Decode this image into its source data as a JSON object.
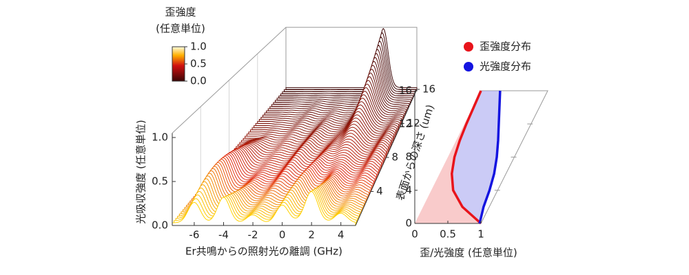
{
  "colorbar": {
    "title": [
      "歪強度",
      "(任意単位)"
    ],
    "ticks": [
      {
        "value": 1,
        "label": "1.0"
      },
      {
        "value": 0.5,
        "label": "0.5"
      },
      {
        "value": 0,
        "label": "0.0"
      }
    ]
  },
  "chart_data": [
    {
      "type": "waterfall",
      "xlabel": "Er共鳴からの照射光の離調 (GHz)",
      "ylabel": "光吸収強度 (任意単位)",
      "zlabel": "表面からの深さ (um)",
      "xlim": [
        -7.5,
        5
      ],
      "xticks": [
        -6,
        -4,
        -2,
        0,
        2,
        4
      ],
      "ylim": [
        0,
        1.05
      ],
      "yticks": [
        {
          "value": 0,
          "label": "0.0"
        },
        {
          "value": 0.5,
          "label": "0.5"
        },
        {
          "value": 1,
          "label": "1.0"
        }
      ],
      "zlim": [
        0,
        16
      ],
      "zticks": [
        4,
        8,
        12,
        16
      ]
    },
    {
      "type": "line",
      "xlabel": "歪/光強度 (任意単位)",
      "xlim": [
        0,
        1
      ],
      "xticks": [
        0,
        0.5,
        1
      ],
      "ylim": [
        0,
        16
      ],
      "yticks": [
        0,
        4,
        8,
        12,
        16
      ],
      "y": [
        0,
        2,
        4,
        6,
        8,
        10,
        12,
        14,
        16
      ],
      "series": [
        {
          "name": "歪強度分布",
          "color": "#e8141b",
          "values": [
            1.0,
            0.72,
            0.58,
            0.56,
            0.6,
            0.68,
            0.78,
            0.89,
            1.0
          ]
        },
        {
          "name": "光強度分布",
          "color": "#1414e0",
          "values": [
            0.98,
            1.04,
            1.13,
            1.2,
            1.24,
            1.26,
            1.27,
            1.28,
            1.29
          ]
        }
      ]
    }
  ]
}
